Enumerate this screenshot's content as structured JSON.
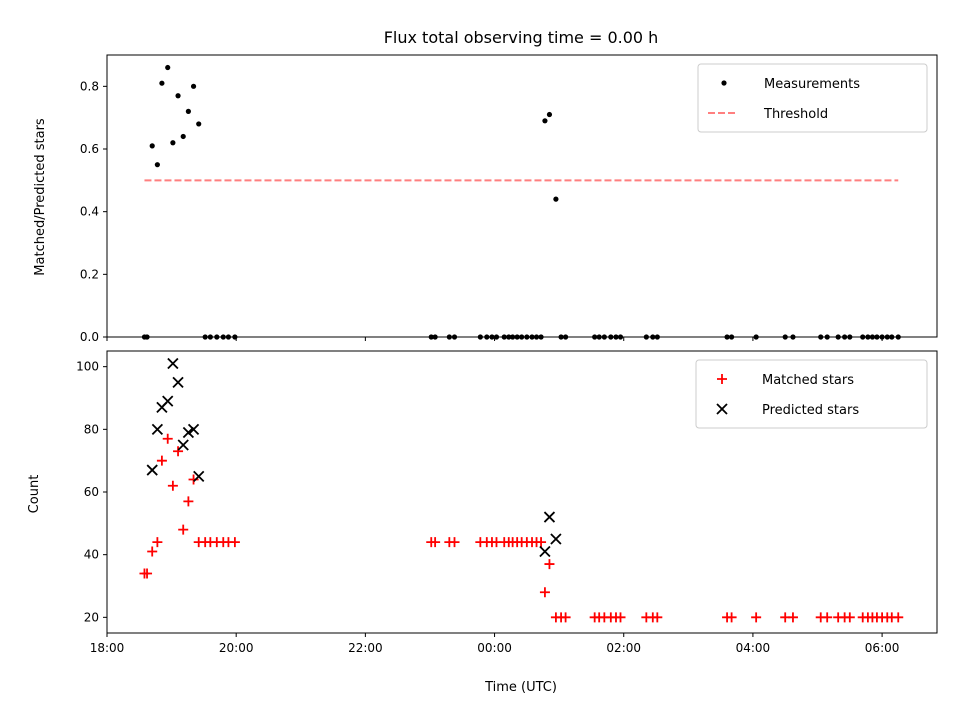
{
  "chart_data": {
    "title": "Flux total observing time = 0.00 h",
    "xlabel": "Time (UTC)",
    "x_range": [
      -6.0,
      6.85
    ],
    "x_ticks": [
      {
        "value": -6,
        "label": "18:00"
      },
      {
        "value": -4,
        "label": "20:00"
      },
      {
        "value": -2,
        "label": "22:00"
      },
      {
        "value": 0,
        "label": "00:00"
      },
      {
        "value": 2,
        "label": "02:00"
      },
      {
        "value": 4,
        "label": "04:00"
      },
      {
        "value": 6,
        "label": "06:00"
      }
    ],
    "top": {
      "type": "scatter",
      "ylabel": "Matched/Predicted stars",
      "ylim": [
        0,
        0.9
      ],
      "y_ticks": [
        "0.0",
        "0.2",
        "0.4",
        "0.6",
        "0.8"
      ],
      "legend_position": "top-right",
      "series": [
        {
          "name": "Measurements",
          "color": "#000000",
          "marker": "dot",
          "x": [
            -5.42,
            -5.38,
            -5.3,
            -5.22,
            -5.15,
            -5.06,
            -4.98,
            -4.9,
            -4.82,
            -4.74,
            -4.66,
            -4.58,
            -4.48,
            -4.4,
            -4.3,
            -4.2,
            -4.12,
            -4.02,
            -0.98,
            -0.92,
            -0.7,
            -0.62,
            -0.22,
            -0.12,
            -0.04,
            0.03,
            0.15,
            0.22,
            0.28,
            0.35,
            0.42,
            0.5,
            0.58,
            0.65,
            0.72,
            0.78,
            0.85,
            0.95,
            1.03,
            1.1,
            1.55,
            1.62,
            1.7,
            1.8,
            1.88,
            1.95,
            2.35,
            2.45,
            2.52,
            3.6,
            3.67,
            4.05,
            4.5,
            4.62,
            5.05,
            5.15,
            5.32,
            5.42,
            5.5,
            5.7,
            5.78,
            5.85,
            5.92,
            6.0,
            6.08,
            6.15,
            6.25
          ],
          "y": [
            0,
            0,
            0.61,
            0.55,
            0.81,
            0.86,
            0.62,
            0.77,
            0.64,
            0.72,
            0.8,
            0.68,
            0,
            0,
            0,
            0,
            0,
            0,
            0,
            0,
            0,
            0,
            0,
            0,
            0,
            0,
            0,
            0,
            0,
            0,
            0,
            0,
            0,
            0,
            0,
            0.69,
            0.71,
            0.44,
            0,
            0,
            0,
            0,
            0,
            0,
            0,
            0,
            0,
            0,
            0,
            0,
            0,
            0,
            0,
            0,
            0,
            0,
            0,
            0,
            0,
            0,
            0,
            0,
            0,
            0,
            0,
            0,
            0
          ]
        },
        {
          "name": "Threshold",
          "color": "#ff7f7f",
          "style": "dashed",
          "x": [
            -5.42,
            6.25
          ],
          "y": [
            0.5,
            0.5
          ]
        }
      ]
    },
    "bottom": {
      "type": "scatter",
      "ylabel": "Count",
      "ylim": [
        15,
        105
      ],
      "y_ticks": [
        "20",
        "40",
        "60",
        "80",
        "100"
      ],
      "legend_position": "top-right",
      "series": [
        {
          "name": "Matched stars",
          "color": "#ff0000",
          "marker": "plus",
          "x": [
            -5.42,
            -5.38,
            -5.3,
            -5.22,
            -5.15,
            -5.06,
            -4.98,
            -4.9,
            -4.82,
            -4.74,
            -4.66,
            -4.58,
            -4.48,
            -4.4,
            -4.3,
            -4.2,
            -4.12,
            -4.02,
            -0.98,
            -0.92,
            -0.7,
            -0.62,
            -0.22,
            -0.12,
            -0.04,
            0.03,
            0.15,
            0.22,
            0.28,
            0.35,
            0.42,
            0.5,
            0.58,
            0.65,
            0.72,
            0.78,
            0.85,
            0.95,
            1.03,
            1.1,
            1.55,
            1.62,
            1.7,
            1.8,
            1.88,
            1.95,
            2.35,
            2.45,
            2.52,
            3.6,
            3.67,
            4.05,
            4.5,
            4.62,
            5.05,
            5.15,
            5.32,
            5.42,
            5.5,
            5.7,
            5.78,
            5.85,
            5.92,
            6.0,
            6.08,
            6.15,
            6.25
          ],
          "y": [
            34,
            34,
            41,
            44,
            70,
            77,
            62,
            73,
            48,
            57,
            64,
            44,
            44,
            44,
            44,
            44,
            44,
            44,
            44,
            44,
            44,
            44,
            44,
            44,
            44,
            44,
            44,
            44,
            44,
            44,
            44,
            44,
            44,
            44,
            44,
            28,
            37,
            20,
            20,
            20,
            20,
            20,
            20,
            20,
            20,
            20,
            20,
            20,
            20,
            20,
            20,
            20,
            20,
            20,
            20,
            20,
            20,
            20,
            20,
            20,
            20,
            20,
            20,
            20,
            20,
            20,
            20
          ]
        },
        {
          "name": "Predicted stars",
          "color": "#000000",
          "marker": "x",
          "x": [
            -5.3,
            -5.22,
            -5.15,
            -5.06,
            -4.98,
            -4.9,
            -4.82,
            -4.74,
            -4.66,
            -4.58,
            0.78,
            0.85,
            0.95
          ],
          "y": [
            67,
            80,
            87,
            89,
            101,
            95,
            75,
            79,
            80,
            65,
            41,
            52,
            45
          ]
        }
      ]
    }
  }
}
